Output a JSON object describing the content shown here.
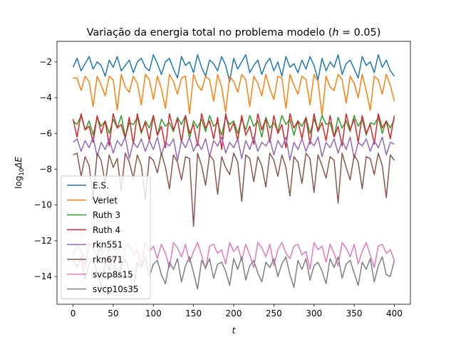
{
  "chart_data": {
    "type": "line",
    "title": "Variação da energia total no problema modelo (h = 0.05)",
    "title_parts": {
      "prefix": "Variação da energia total no problema modelo (",
      "var": "h",
      "suffix": " = 0.05)"
    },
    "xlabel": "t",
    "ylabel": "log₁₀ΔE",
    "ylabel_parts": {
      "base": "log",
      "sub": "10",
      "rest": "ΔE"
    },
    "xlim": [
      -20,
      420
    ],
    "ylim": [
      -15.55,
      -0.85
    ],
    "xticks": [
      0,
      50,
      100,
      150,
      200,
      250,
      300,
      350,
      400
    ],
    "xtick_labels": [
      "0",
      "50",
      "100",
      "150",
      "200",
      "250",
      "300",
      "350",
      "400"
    ],
    "yticks": [
      -14,
      -12,
      -10,
      -8,
      -6,
      -4,
      -2
    ],
    "ytick_labels": [
      "−14",
      "−12",
      "−10",
      "−8",
      "−6",
      "−4",
      "−2"
    ],
    "grid": false,
    "legend_position": "lower-left",
    "series": [
      {
        "name": "E.S.",
        "color": "#1f77b4",
        "values": [
          -2.3,
          -1.8,
          -2.5,
          -2.1,
          -1.7,
          -2.4,
          -2.0,
          -2.2,
          -2.8,
          -1.9,
          -2.3,
          -1.7,
          -2.5,
          -2.2,
          -1.9,
          -2.6,
          -2.0,
          -1.8,
          -2.3,
          -2.5,
          -1.6,
          -2.1,
          -2.7,
          -2.0,
          -1.8,
          -2.4,
          -2.9,
          -1.7,
          -2.2,
          -2.0,
          -2.6,
          -1.6,
          -2.3,
          -2.8,
          -1.9,
          -2.1,
          -2.5,
          -1.7,
          -2.2,
          -3.1,
          -1.8,
          -2.4,
          -2.0,
          -1.6,
          -2.6,
          -2.2,
          -1.9,
          -2.7,
          -2.1,
          -1.8,
          -2.5,
          -2.0,
          -2.8,
          -1.7,
          -2.3,
          -2.1,
          -2.6,
          -1.9,
          -2.4,
          -1.7,
          -2.2,
          -3.0,
          -1.8,
          -2.5,
          -2.0,
          -2.3,
          -1.6,
          -2.7,
          -2.1,
          -1.9,
          -2.4,
          -2.9,
          -1.7,
          -2.2,
          -2.0,
          -2.6,
          -1.6,
          -2.3,
          -1.9,
          -2.5,
          -2.8
        ]
      },
      {
        "name": "Verlet",
        "color": "#ff7f0e",
        "values": [
          -2.9,
          -2.9,
          -3.6,
          -2.8,
          -3.1,
          -4.5,
          -2.8,
          -3.3,
          -3.9,
          -2.8,
          -3.0,
          -4.7,
          -2.7,
          -3.4,
          -3.7,
          -2.8,
          -3.2,
          -4.4,
          -2.7,
          -3.0,
          -4.1,
          -2.8,
          -3.5,
          -4.6,
          -2.7,
          -3.1,
          -3.8,
          -2.9,
          -2.8,
          -4.9,
          -2.7,
          -3.3,
          -3.6,
          -2.8,
          -3.0,
          -4.2,
          -2.7,
          -3.4,
          -4.8,
          -2.8,
          -3.1,
          -3.7,
          -2.7,
          -3.0,
          -4.5,
          -2.8,
          -3.2,
          -3.9,
          -2.7,
          -3.5,
          -4.1,
          -2.8,
          -2.9,
          -4.6,
          -2.7,
          -3.3,
          -3.8,
          -2.8,
          -3.0,
          -4.4,
          -2.7,
          -3.1,
          -5.0,
          -2.8,
          -3.4,
          -3.6,
          -2.7,
          -3.0,
          -4.3,
          -2.8,
          -3.2,
          -4.0,
          -2.7,
          -3.6,
          -4.7,
          -2.8,
          -3.0,
          -3.8,
          -2.7,
          -3.3,
          -4.2
        ]
      },
      {
        "name": "Ruth 3",
        "color": "#2ca02c",
        "values": [
          -5.3,
          -5.5,
          -5.0,
          -5.8,
          -5.3,
          -6.1,
          -5.1,
          -5.6,
          -5.3,
          -6.0,
          -5.2,
          -5.7,
          -5.0,
          -6.2,
          -5.4,
          -5.5,
          -5.1,
          -6.0,
          -5.3,
          -5.7,
          -5.0,
          -6.1,
          -5.2,
          -5.6,
          -5.4,
          -5.9,
          -5.1,
          -5.5,
          -5.0,
          -6.3,
          -5.3,
          -5.7,
          -5.2,
          -5.9,
          -5.0,
          -5.6,
          -5.4,
          -6.1,
          -5.1,
          -5.5,
          -5.3,
          -6.0,
          -5.2,
          -5.8,
          -5.0,
          -5.6,
          -5.3,
          -6.2,
          -5.1,
          -5.7,
          -5.4,
          -5.9,
          -5.0,
          -5.5,
          -5.2,
          -6.1,
          -5.3,
          -5.6,
          -5.1,
          -6.0,
          -5.2,
          -5.8,
          -5.0,
          -5.5,
          -5.4,
          -6.2,
          -5.1,
          -5.7,
          -5.3,
          -5.9,
          -5.0,
          -5.6,
          -5.2,
          -6.1,
          -5.4,
          -5.5,
          -5.1,
          -6.0,
          -5.3,
          -5.7,
          -5.2
        ]
      },
      {
        "name": "Ruth 4",
        "color": "#d62728",
        "values": [
          -5.2,
          -6.2,
          -4.9,
          -5.8,
          -5.6,
          -6.5,
          -5.0,
          -6.0,
          -5.3,
          -6.7,
          -4.9,
          -5.7,
          -5.5,
          -6.3,
          -5.1,
          -6.6,
          -4.9,
          -5.9,
          -5.4,
          -6.4,
          -5.0,
          -6.1,
          -5.6,
          -6.8,
          -4.9,
          -5.8,
          -5.2,
          -6.5,
          -5.0,
          -6.0,
          -5.5,
          -6.7,
          -4.9,
          -5.7,
          -5.3,
          -6.3,
          -5.1,
          -6.9,
          -4.9,
          -5.9,
          -5.4,
          -6.4,
          -5.0,
          -6.1,
          -5.6,
          -6.6,
          -4.9,
          -5.8,
          -5.2,
          -6.5,
          -5.0,
          -6.0,
          -5.5,
          -6.8,
          -4.9,
          -5.7,
          -5.3,
          -6.3,
          -5.1,
          -6.6,
          -4.9,
          -5.9,
          -5.4,
          -6.4,
          -5.0,
          -6.2,
          -5.6,
          -6.7,
          -4.9,
          -5.8,
          -5.2,
          -6.5,
          -5.0,
          -6.0,
          -5.5,
          -6.6,
          -4.9,
          -5.7,
          -5.3,
          -6.3,
          -5.0
        ]
      },
      {
        "name": "rkn551",
        "color": "#9467bd",
        "values": [
          -6.5,
          -6.3,
          -7.0,
          -6.4,
          -6.8,
          -6.2,
          -7.3,
          -6.5,
          -6.9,
          -6.3,
          -7.1,
          -6.4,
          -6.7,
          -6.2,
          -7.4,
          -6.5,
          -6.8,
          -6.3,
          -7.0,
          -6.4,
          -6.9,
          -6.2,
          -7.2,
          -6.5,
          -6.7,
          -6.3,
          -7.5,
          -6.4,
          -6.8,
          -6.2,
          -7.0,
          -6.5,
          -6.9,
          -6.3,
          -7.3,
          -6.4,
          -6.7,
          -6.2,
          -7.1,
          -6.5,
          -6.8,
          -6.3,
          -7.4,
          -6.4,
          -6.9,
          -6.2,
          -7.0,
          -6.5,
          -6.7,
          -6.3,
          -7.2,
          -6.4,
          -6.8,
          -6.2,
          -7.5,
          -6.5,
          -6.9,
          -6.3,
          -7.0,
          -6.4,
          -6.7,
          -6.2,
          -7.3,
          -6.5,
          -6.8,
          -6.3,
          -7.1,
          -6.4,
          -6.9,
          -6.2,
          -7.4,
          -6.5,
          -6.7,
          -6.3,
          -7.0,
          -6.4,
          -6.8,
          -6.2,
          -7.2,
          -6.5,
          -6.6
        ]
      },
      {
        "name": "rkn671",
        "color": "#8c564b",
        "values": [
          -7.2,
          -7.1,
          -8.4,
          -7.3,
          -7.8,
          -9.6,
          -7.1,
          -7.5,
          -8.8,
          -7.2,
          -7.9,
          -7.4,
          -9.2,
          -7.1,
          -7.6,
          -8.5,
          -7.2,
          -7.8,
          -9.7,
          -7.3,
          -7.5,
          -8.2,
          -7.1,
          -7.9,
          -9.1,
          -7.2,
          -7.6,
          -8.6,
          -7.3,
          -7.4,
          -11.2,
          -7.1,
          -7.8,
          -8.9,
          -7.2,
          -7.5,
          -9.4,
          -7.3,
          -7.9,
          -8.3,
          -7.1,
          -7.6,
          -9.8,
          -7.2,
          -7.4,
          -8.7,
          -7.3,
          -7.8,
          -9.0,
          -7.1,
          -7.5,
          -8.4,
          -7.2,
          -7.9,
          -9.5,
          -7.3,
          -7.6,
          -8.8,
          -7.1,
          -7.4,
          -9.3,
          -7.2,
          -7.8,
          -8.5,
          -7.3,
          -7.5,
          -9.9,
          -7.1,
          -7.9,
          -8.6,
          -7.2,
          -7.6,
          -9.1,
          -7.3,
          -7.4,
          -8.3,
          -7.1,
          -7.8,
          -9.6,
          -7.2,
          -7.5
        ]
      },
      {
        "name": "svcp8s15",
        "color": "#e377c2",
        "values": [
          -12.8,
          -12.2,
          -12.6,
          -13.5,
          -12.1,
          -12.4,
          -12.9,
          -12.2,
          -13.3,
          -12.5,
          -12.1,
          -12.7,
          -13.6,
          -12.3,
          -12.2,
          -12.8,
          -12.5,
          -13.4,
          -12.1,
          -12.6,
          -12.3,
          -13.0,
          -12.2,
          -12.7,
          -13.5,
          -12.1,
          -12.4,
          -12.9,
          -12.2,
          -13.2,
          -12.6,
          -12.1,
          -12.8,
          -13.6,
          -12.3,
          -12.2,
          -12.7,
          -12.5,
          -13.3,
          -12.1,
          -12.6,
          -12.3,
          -13.1,
          -12.2,
          -12.8,
          -13.5,
          -12.1,
          -12.4,
          -12.9,
          -12.2,
          -13.4,
          -12.5,
          -12.1,
          -12.7,
          -13.0,
          -12.3,
          -12.2,
          -12.8,
          -12.6,
          -13.6,
          -12.1,
          -12.5,
          -12.3,
          -13.2,
          -12.2,
          -12.7,
          -13.4,
          -12.1,
          -12.4,
          -12.9,
          -12.2,
          -13.3,
          -12.6,
          -12.1,
          -12.8,
          -13.5,
          -12.3,
          -12.2,
          -12.7,
          -12.5,
          -13.1
        ]
      },
      {
        "name": "svcp10s35",
        "color": "#7f7f7f",
        "values": [
          -13.1,
          -13.5,
          -12.9,
          -14.2,
          -13.3,
          -13.0,
          -13.8,
          -14.6,
          -13.2,
          -13.6,
          -12.9,
          -14.1,
          -13.4,
          -13.0,
          -13.7,
          -14.8,
          -13.2,
          -13.5,
          -12.9,
          -14.0,
          -13.3,
          -13.1,
          -13.9,
          -14.4,
          -13.2,
          -13.6,
          -13.0,
          -14.3,
          -13.4,
          -12.9,
          -13.8,
          -14.7,
          -13.1,
          -13.5,
          -13.0,
          -14.1,
          -13.3,
          -13.2,
          -13.7,
          -14.5,
          -13.0,
          -13.6,
          -12.9,
          -14.2,
          -13.4,
          -13.1,
          -13.8,
          -14.3,
          -13.2,
          -13.5,
          -13.0,
          -14.0,
          -13.3,
          -12.9,
          -13.9,
          -14.6,
          -13.1,
          -13.6,
          -13.0,
          -14.2,
          -13.4,
          -13.2,
          -13.7,
          -14.4,
          -13.0,
          -13.5,
          -12.9,
          -14.1,
          -13.3,
          -13.1,
          -13.8,
          -14.5,
          -13.2,
          -13.6,
          -13.0,
          -14.3,
          -13.4,
          -12.9,
          -13.9,
          -14.0,
          -13.1
        ]
      }
    ]
  }
}
